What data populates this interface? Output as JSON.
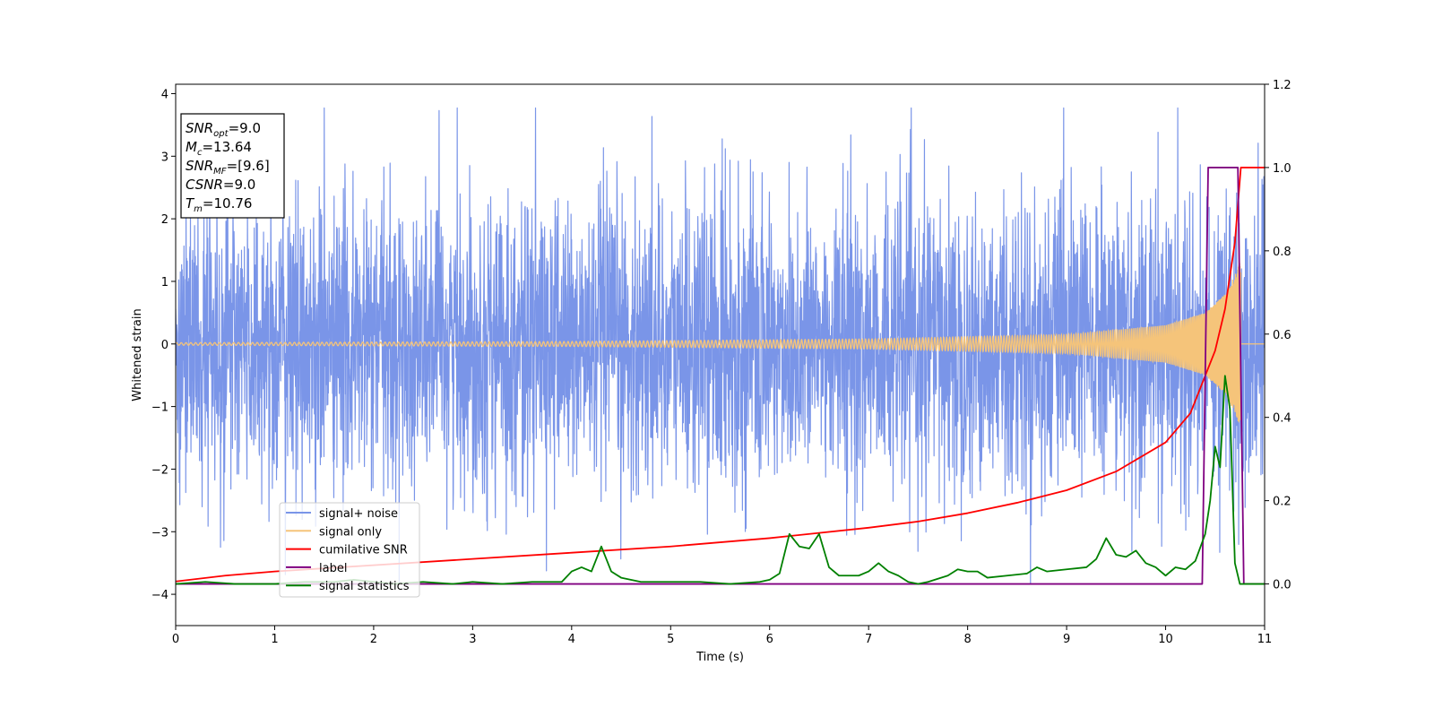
{
  "chart_data": {
    "type": "line",
    "xlabel": "Time (s)",
    "ylabel": "Whitened strain",
    "xlim": [
      0,
      11
    ],
    "ylim": [
      -4.5,
      4.15
    ],
    "y2lim": [
      -0.1,
      1.2
    ],
    "x_ticks": [
      0,
      1,
      2,
      3,
      4,
      5,
      6,
      7,
      8,
      9,
      10,
      11
    ],
    "y_ticks": [
      -4,
      -3,
      -2,
      -1,
      0,
      1,
      2,
      3,
      4
    ],
    "y_tick_labels": [
      "−4",
      "−3",
      "−2",
      "−1",
      "0",
      "1",
      "2",
      "3",
      "4"
    ],
    "y2_ticks": [
      0.0,
      0.2,
      0.4,
      0.6,
      0.8,
      1.0,
      1.2
    ],
    "y2_tick_labels": [
      "0.0",
      "0.2",
      "0.4",
      "0.6",
      "0.8",
      "1.0",
      "1.2"
    ],
    "grid": false,
    "legend_position": "lower-left",
    "annotation": {
      "position": "top-left",
      "lines": [
        {
          "base": "SNR",
          "sub": "opt",
          "rest": "=9.0"
        },
        {
          "base": "M",
          "sub": "c",
          "rest": "=13.64"
        },
        {
          "base": "SNR",
          "sub": "MF",
          "rest": "=[9.6]"
        },
        {
          "base": "CSNR",
          "sub": "",
          "rest": "=9.0"
        },
        {
          "base": "T",
          "sub": "m",
          "rest": "=10.76"
        }
      ]
    },
    "series": [
      {
        "name": "signal+ noise",
        "axis": "left",
        "color": "#7a95e8",
        "kind": "noise",
        "noise_sigma": 1.0,
        "observed_range": [
          -4.15,
          3.77
        ],
        "chirp_start": 0,
        "chirp_end": 10.76,
        "chirp_peak_amplitude": 1.35
      },
      {
        "name": "signal only",
        "axis": "left",
        "color": "#f5c47a",
        "kind": "chirp",
        "chirp_start": 0,
        "chirp_end": 10.76,
        "amplitude_points": {
          "x": [
            0,
            4,
            7,
            9,
            10,
            10.4,
            10.6,
            10.7,
            10.76,
            10.8,
            11
          ],
          "y": [
            0.02,
            0.04,
            0.08,
            0.15,
            0.3,
            0.5,
            0.8,
            1.1,
            1.35,
            0,
            0
          ]
        }
      },
      {
        "name": "cumilative SNR",
        "axis": "right",
        "color": "#ff0000",
        "x": [
          0,
          0.5,
          1,
          2,
          3,
          4,
          5,
          6,
          7,
          7.5,
          8,
          8.5,
          9,
          9.5,
          10,
          10.25,
          10.5,
          10.6,
          10.7,
          10.76,
          10.8,
          11
        ],
        "values": [
          0.006,
          0.02,
          0.03,
          0.045,
          0.06,
          0.075,
          0.09,
          0.11,
          0.135,
          0.15,
          0.17,
          0.195,
          0.225,
          0.27,
          0.34,
          0.41,
          0.56,
          0.66,
          0.82,
          1.0,
          1.0,
          1.0
        ]
      },
      {
        "name": "label",
        "axis": "right",
        "color": "#800080",
        "x": [
          0,
          10.37,
          10.43,
          10.73,
          10.79,
          11
        ],
        "values": [
          0,
          0,
          1,
          1,
          0,
          0
        ]
      },
      {
        "name": "signal statistics",
        "axis": "right",
        "color": "#008000",
        "x": [
          0,
          0.3,
          0.6,
          1.0,
          1.3,
          1.6,
          1.8,
          2.0,
          2.2,
          2.5,
          2.8,
          3.0,
          3.3,
          3.6,
          3.9,
          4.0,
          4.1,
          4.2,
          4.3,
          4.4,
          4.5,
          4.7,
          5.0,
          5.3,
          5.6,
          5.9,
          6.0,
          6.1,
          6.2,
          6.3,
          6.4,
          6.5,
          6.6,
          6.7,
          6.8,
          6.9,
          7.0,
          7.1,
          7.2,
          7.3,
          7.4,
          7.5,
          7.6,
          7.8,
          7.9,
          8.0,
          8.1,
          8.2,
          8.4,
          8.6,
          8.7,
          8.8,
          9.0,
          9.2,
          9.3,
          9.4,
          9.5,
          9.6,
          9.7,
          9.8,
          9.9,
          10.0,
          10.1,
          10.2,
          10.3,
          10.4,
          10.45,
          10.5,
          10.55,
          10.6,
          10.65,
          10.7,
          10.75,
          10.8,
          11.0
        ],
        "values": [
          0.0,
          0.005,
          0.0,
          0.0,
          0.005,
          0.005,
          0.01,
          0.005,
          0.0,
          0.005,
          0.0,
          0.005,
          0.0,
          0.005,
          0.005,
          0.03,
          0.04,
          0.03,
          0.09,
          0.03,
          0.015,
          0.005,
          0.005,
          0.005,
          0.0,
          0.005,
          0.01,
          0.025,
          0.12,
          0.09,
          0.085,
          0.12,
          0.04,
          0.02,
          0.02,
          0.02,
          0.03,
          0.05,
          0.03,
          0.02,
          0.005,
          0.0,
          0.005,
          0.02,
          0.035,
          0.03,
          0.03,
          0.015,
          0.02,
          0.025,
          0.04,
          0.03,
          0.035,
          0.04,
          0.06,
          0.11,
          0.07,
          0.065,
          0.08,
          0.05,
          0.04,
          0.02,
          0.04,
          0.035,
          0.055,
          0.12,
          0.2,
          0.33,
          0.28,
          0.5,
          0.42,
          0.05,
          0.0,
          0.0,
          0.0
        ]
      }
    ]
  }
}
